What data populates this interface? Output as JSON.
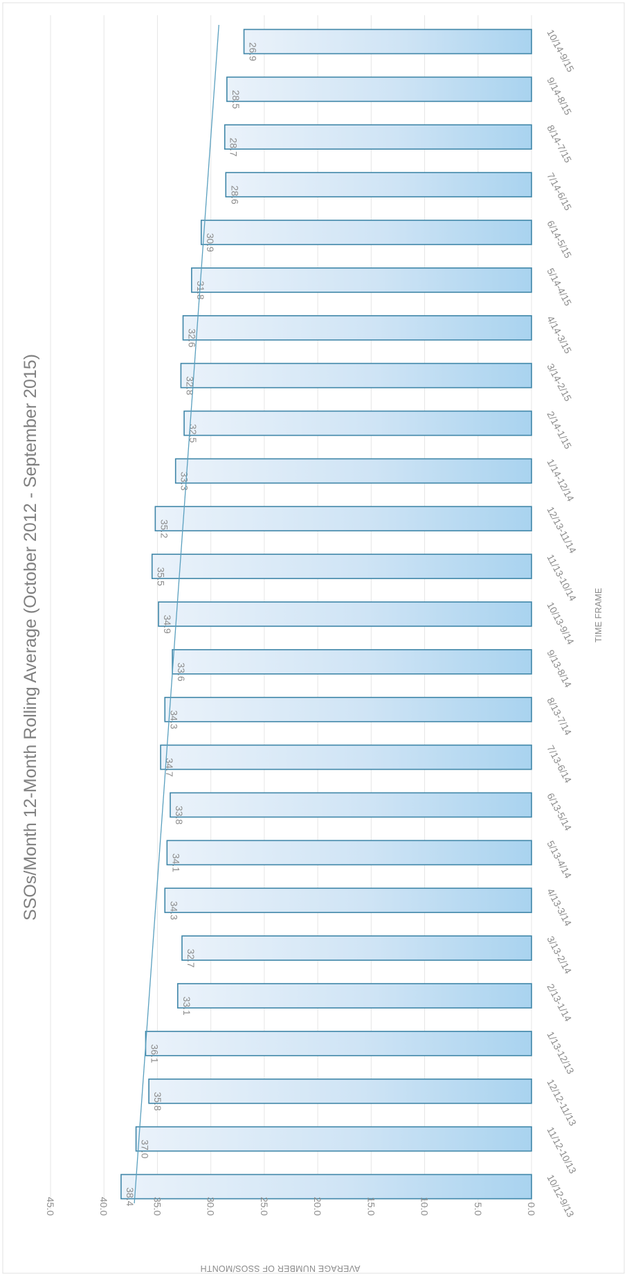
{
  "chart_data": {
    "type": "bar",
    "orientation": "vertical-bars, image rotated 90 degrees clockwise",
    "title": "SSOs/Month 12-Month Rolling Average (October 2012 - September 2015)",
    "xlabel": "TIME FRAME",
    "ylabel": "AVERAGE NUMBER OF SSOS/MONTH",
    "ylim": [
      0,
      45
    ],
    "yticks": [
      "0.0",
      "5.0",
      "10.0",
      "15.0",
      "20.0",
      "25.0",
      "30.0",
      "35.0",
      "40.0",
      "45.0"
    ],
    "categories": [
      "10/12-9/13",
      "11/12-10/13",
      "12/12-11/13",
      "1/13-12/13",
      "2/13-1/14",
      "3/13-2/14",
      "4/13-3/14",
      "5/13-4/14",
      "6/13-5/14",
      "7/13-6/14",
      "8/13-7/14",
      "9/13-8/14",
      "10/13-9/14",
      "11/13-10/14",
      "12/13-11/14",
      "1/14-12/14",
      "2/14-1/15",
      "3/14-2/15",
      "4/14-3/15",
      "5/14-4/15",
      "6/14-5/15",
      "7/14-6/15",
      "8/14-7/15",
      "9/14-8/15",
      "10/14-9/15"
    ],
    "values": [
      38.4,
      37.0,
      35.8,
      36.1,
      33.1,
      32.7,
      34.3,
      34.1,
      33.8,
      34.7,
      34.3,
      33.6,
      34.9,
      35.5,
      35.2,
      33.3,
      32.5,
      32.8,
      32.6,
      31.8,
      30.9,
      28.6,
      28.7,
      28.5,
      26.9
    ],
    "data_labels": [
      "38.4",
      "37.0",
      "35.8",
      "36.1",
      "33.1",
      "32.7",
      "34.3",
      "34.1",
      "33.8",
      "34.7",
      "34.3",
      "33.6",
      "34.9",
      "35.5",
      "35.2",
      "33.3",
      "32.5",
      "32.8",
      "32.6",
      "31.8",
      "30.9",
      "28.6",
      "28.7",
      "28.5",
      "26.9"
    ],
    "trendline": "linear",
    "grid": true,
    "legend": "none",
    "colors": {
      "bar_fill_light": "#eaf2fa",
      "bar_fill_dark": "#a9d3ef",
      "bar_border": "#3f86a8",
      "trendline": "#5aa0bf",
      "text": "#8c8c8c"
    }
  }
}
